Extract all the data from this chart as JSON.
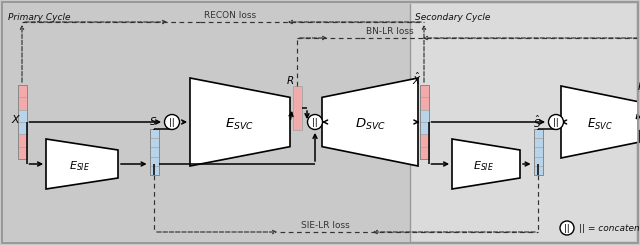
{
  "bg_primary": "#c9c9c9",
  "bg_secondary": "#dbdbdb",
  "bg_white": "#ffffff",
  "primary_cycle_label": "Primary Cycle",
  "secondary_cycle_label": "Secondary Cycle",
  "recon_loss_label": "RECON loss",
  "bn_lr_loss_label": "BN-LR loss",
  "sie_lr_loss_label": "SIE-LR loss",
  "concat_label": "|| = concatenate",
  "color_pink": "#f2aaaa",
  "color_blue": "#b8d4ea",
  "arrow_color": "#111111",
  "dashed_color": "#333333",
  "text_color": "#111111",
  "border_color": "#999999"
}
